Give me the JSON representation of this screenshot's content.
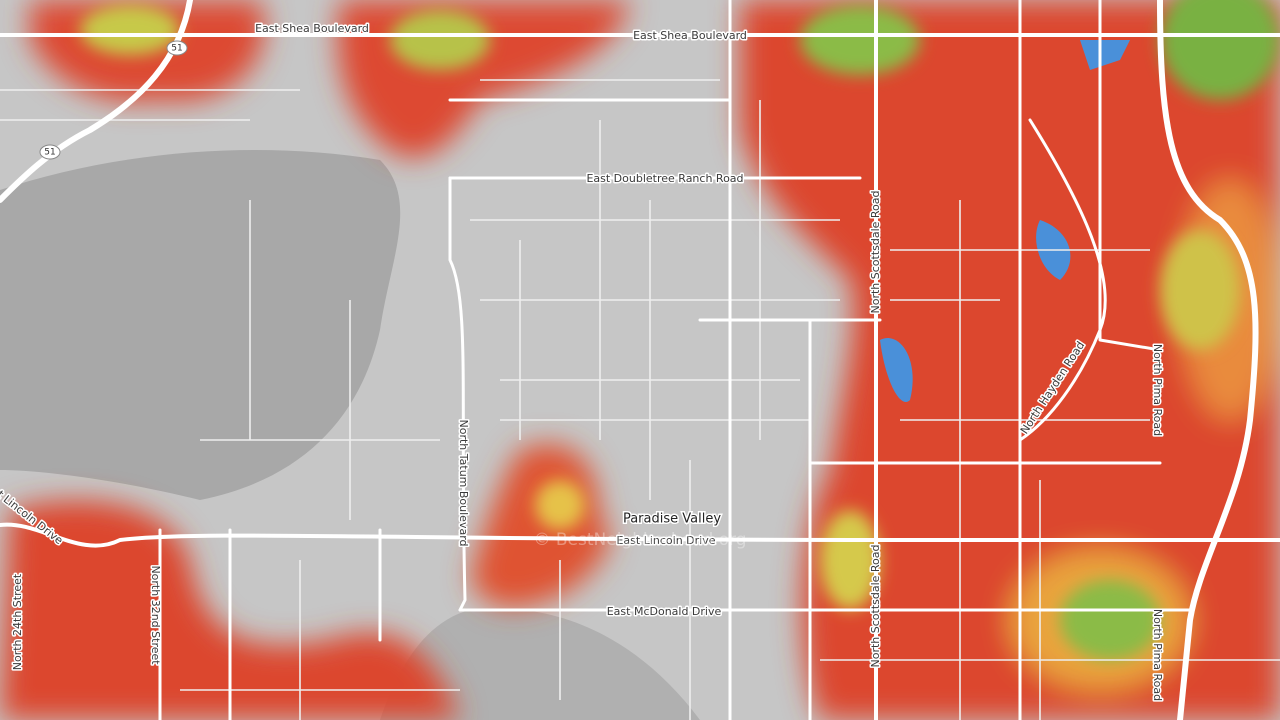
{
  "labels": [
    "East Shea Boulevard",
    "East Shea Boulevard",
    "East Doubletree Ranch Road",
    "North Scottsdale Road",
    "North Scottsdale Road",
    "North Tatum Boulevard",
    "East Lincoln Drive",
    "East Lincoln Drive",
    "East McDonald Drive",
    "North Hayden Road",
    "North Pima Road",
    "North Pima Road",
    "North 24th Street",
    "North 32nd Street"
  ],
  "place": "Paradise Valley",
  "shields": [
    "51",
    "51"
  ],
  "watermark": "© BestNeighborhood.org"
}
